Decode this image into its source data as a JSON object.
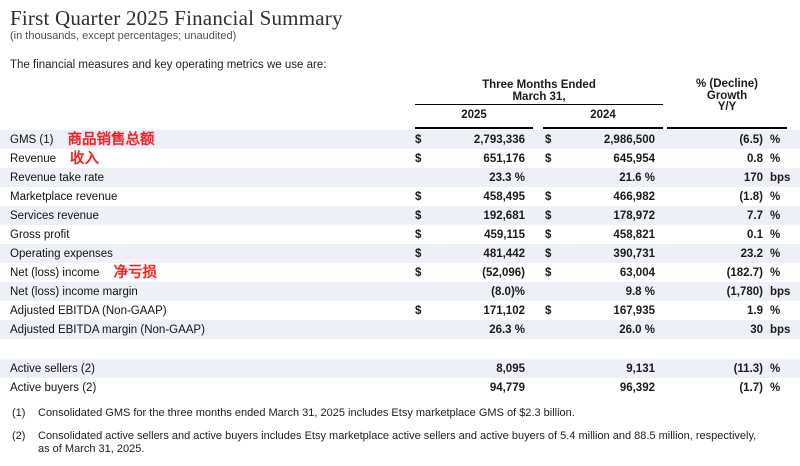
{
  "page": {
    "title": "First Quarter 2025 Financial Summary",
    "subtitle": "(in thousands, except percentages; unaudited)",
    "intro": "The financial measures and key operating metrics we use are:"
  },
  "colors": {
    "row_stripe": "#eef0f7",
    "annotation_red": "#f32222",
    "rule_black": "#000000"
  },
  "table": {
    "header": {
      "period_line1": "Three Months Ended",
      "period_line2": "March 31,",
      "year_2025": "2025",
      "year_2024": "2024",
      "growth_line1": "% (Decline)",
      "growth_line2": "Growth",
      "growth_line3": "Y/Y"
    },
    "rows": [
      {
        "label": "GMS (1)",
        "annotation": "商品销售总额",
        "cur1": "$",
        "val1": "2,793,336",
        "cur2": "$",
        "val2": "2,986,500",
        "growth": "(6.5)",
        "unit": "%"
      },
      {
        "label": "Revenue",
        "annotation": "收入",
        "cur1": "$",
        "val1": "651,176",
        "cur2": "$",
        "val2": "645,954",
        "growth": "0.8",
        "unit": "%"
      },
      {
        "label": "Revenue take rate",
        "annotation": "",
        "cur1": "",
        "val1": "23.3 %",
        "cur2": "",
        "val2": "21.6 %",
        "growth": "170",
        "unit": "bps"
      },
      {
        "label": "Marketplace revenue",
        "annotation": "",
        "cur1": "$",
        "val1": "458,495",
        "cur2": "$",
        "val2": "466,982",
        "growth": "(1.8)",
        "unit": "%"
      },
      {
        "label": "Services revenue",
        "annotation": "",
        "cur1": "$",
        "val1": "192,681",
        "cur2": "$",
        "val2": "178,972",
        "growth": "7.7",
        "unit": "%"
      },
      {
        "label": "Gross profit",
        "annotation": "",
        "cur1": "$",
        "val1": "459,115",
        "cur2": "$",
        "val2": "458,821",
        "growth": "0.1",
        "unit": "%"
      },
      {
        "label": "Operating expenses",
        "annotation": "",
        "cur1": "$",
        "val1": "481,442",
        "cur2": "$",
        "val2": "390,731",
        "growth": "23.2",
        "unit": "%"
      },
      {
        "label": "Net (loss) income",
        "annotation": "净亏损",
        "cur1": "$",
        "val1": "(52,096)",
        "cur2": "$",
        "val2": "63,004",
        "growth": "(182.7)",
        "unit": "%"
      },
      {
        "label": "Net (loss) income margin",
        "annotation": "",
        "cur1": "",
        "val1": "(8.0)%",
        "cur2": "",
        "val2": "9.8 %",
        "growth": "(1,780)",
        "unit": "bps"
      },
      {
        "label": "Adjusted EBITDA (Non-GAAP)",
        "annotation": "",
        "cur1": "$",
        "val1": "171,102",
        "cur2": "$",
        "val2": "167,935",
        "growth": "1.9",
        "unit": "%"
      },
      {
        "label": "Adjusted EBITDA margin (Non-GAAP)",
        "annotation": "",
        "cur1": "",
        "val1": "26.3 %",
        "cur2": "",
        "val2": "26.0 %",
        "growth": "30",
        "unit": "bps"
      }
    ],
    "metric_rows": [
      {
        "label": "Active sellers (2)",
        "annotation": "",
        "cur1": "",
        "val1": "8,095",
        "cur2": "",
        "val2": "9,131",
        "growth": "(11.3)",
        "unit": "%"
      },
      {
        "label": "Active buyers (2)",
        "annotation": "",
        "cur1": "",
        "val1": "94,779",
        "cur2": "",
        "val2": "96,392",
        "growth": "(1.7)",
        "unit": "%"
      }
    ]
  },
  "footnotes": [
    {
      "marker": "(1)",
      "text": "Consolidated GMS for the three months ended March 31, 2025 includes Etsy marketplace GMS of $2.3 billion."
    },
    {
      "marker": "(2)",
      "text": "Consolidated active sellers and active buyers includes Etsy marketplace active sellers and active buyers of 5.4 million and 88.5 million, respectively, as of March 31, 2025."
    }
  ]
}
